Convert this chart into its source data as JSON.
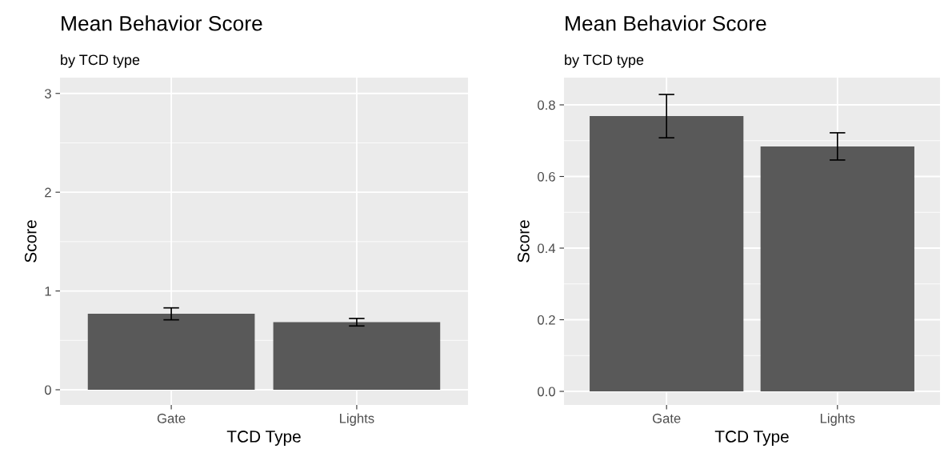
{
  "chart_data": [
    {
      "type": "bar",
      "title": "Mean Behavior Score",
      "subtitle": "by TCD type",
      "xlabel": "TCD Type",
      "ylabel": "Score",
      "categories": [
        "Gate",
        "Lights"
      ],
      "values": [
        0.769,
        0.684
      ],
      "errors": [
        [
          0.708,
          0.829
        ],
        [
          0.646,
          0.722
        ]
      ],
      "color": "#595959",
      "ylim": [
        -0.154,
        3.16
      ],
      "yticks": [
        0,
        1,
        2,
        3
      ],
      "grid": true,
      "legend": false
    },
    {
      "type": "bar",
      "title": "Mean Behavior Score",
      "subtitle": "by TCD type",
      "xlabel": "TCD Type",
      "ylabel": "Score",
      "categories": [
        "Gate",
        "Lights"
      ],
      "values": [
        0.769,
        0.684
      ],
      "errors": [
        [
          0.708,
          0.829
        ],
        [
          0.646,
          0.722
        ]
      ],
      "color": "#595959",
      "ylim": [
        -0.038,
        0.876
      ],
      "yticks": [
        {
          "value": 0,
          "label": "0.0"
        },
        0.2,
        0.4,
        0.6,
        0.8
      ],
      "grid": true,
      "legend": false
    }
  ]
}
